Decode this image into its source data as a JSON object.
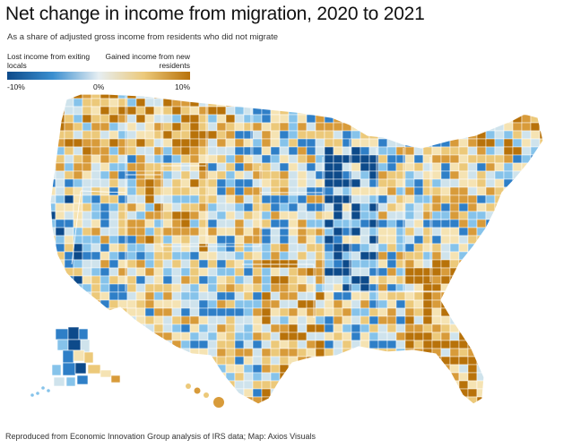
{
  "title": "Net change in income from migration, 2020 to 2021",
  "subtitle": "As a share of adjusted gross income from residents who did not migrate",
  "legend": {
    "left_label": "Lost income from exiting locals",
    "right_label": "Gained income from new residents",
    "ticks": [
      "-10%",
      "0%",
      "10%"
    ],
    "colors": [
      "#0d4a8a",
      "#3b8fd0",
      "#e6eef2",
      "#ecc97a",
      "#b8720a"
    ]
  },
  "map": {
    "region": "United States counties",
    "pattern_seed": 7
  },
  "footer": "Reproduced from Economic Innovation Group analysis of IRS data; Map: Axios Visuals"
}
